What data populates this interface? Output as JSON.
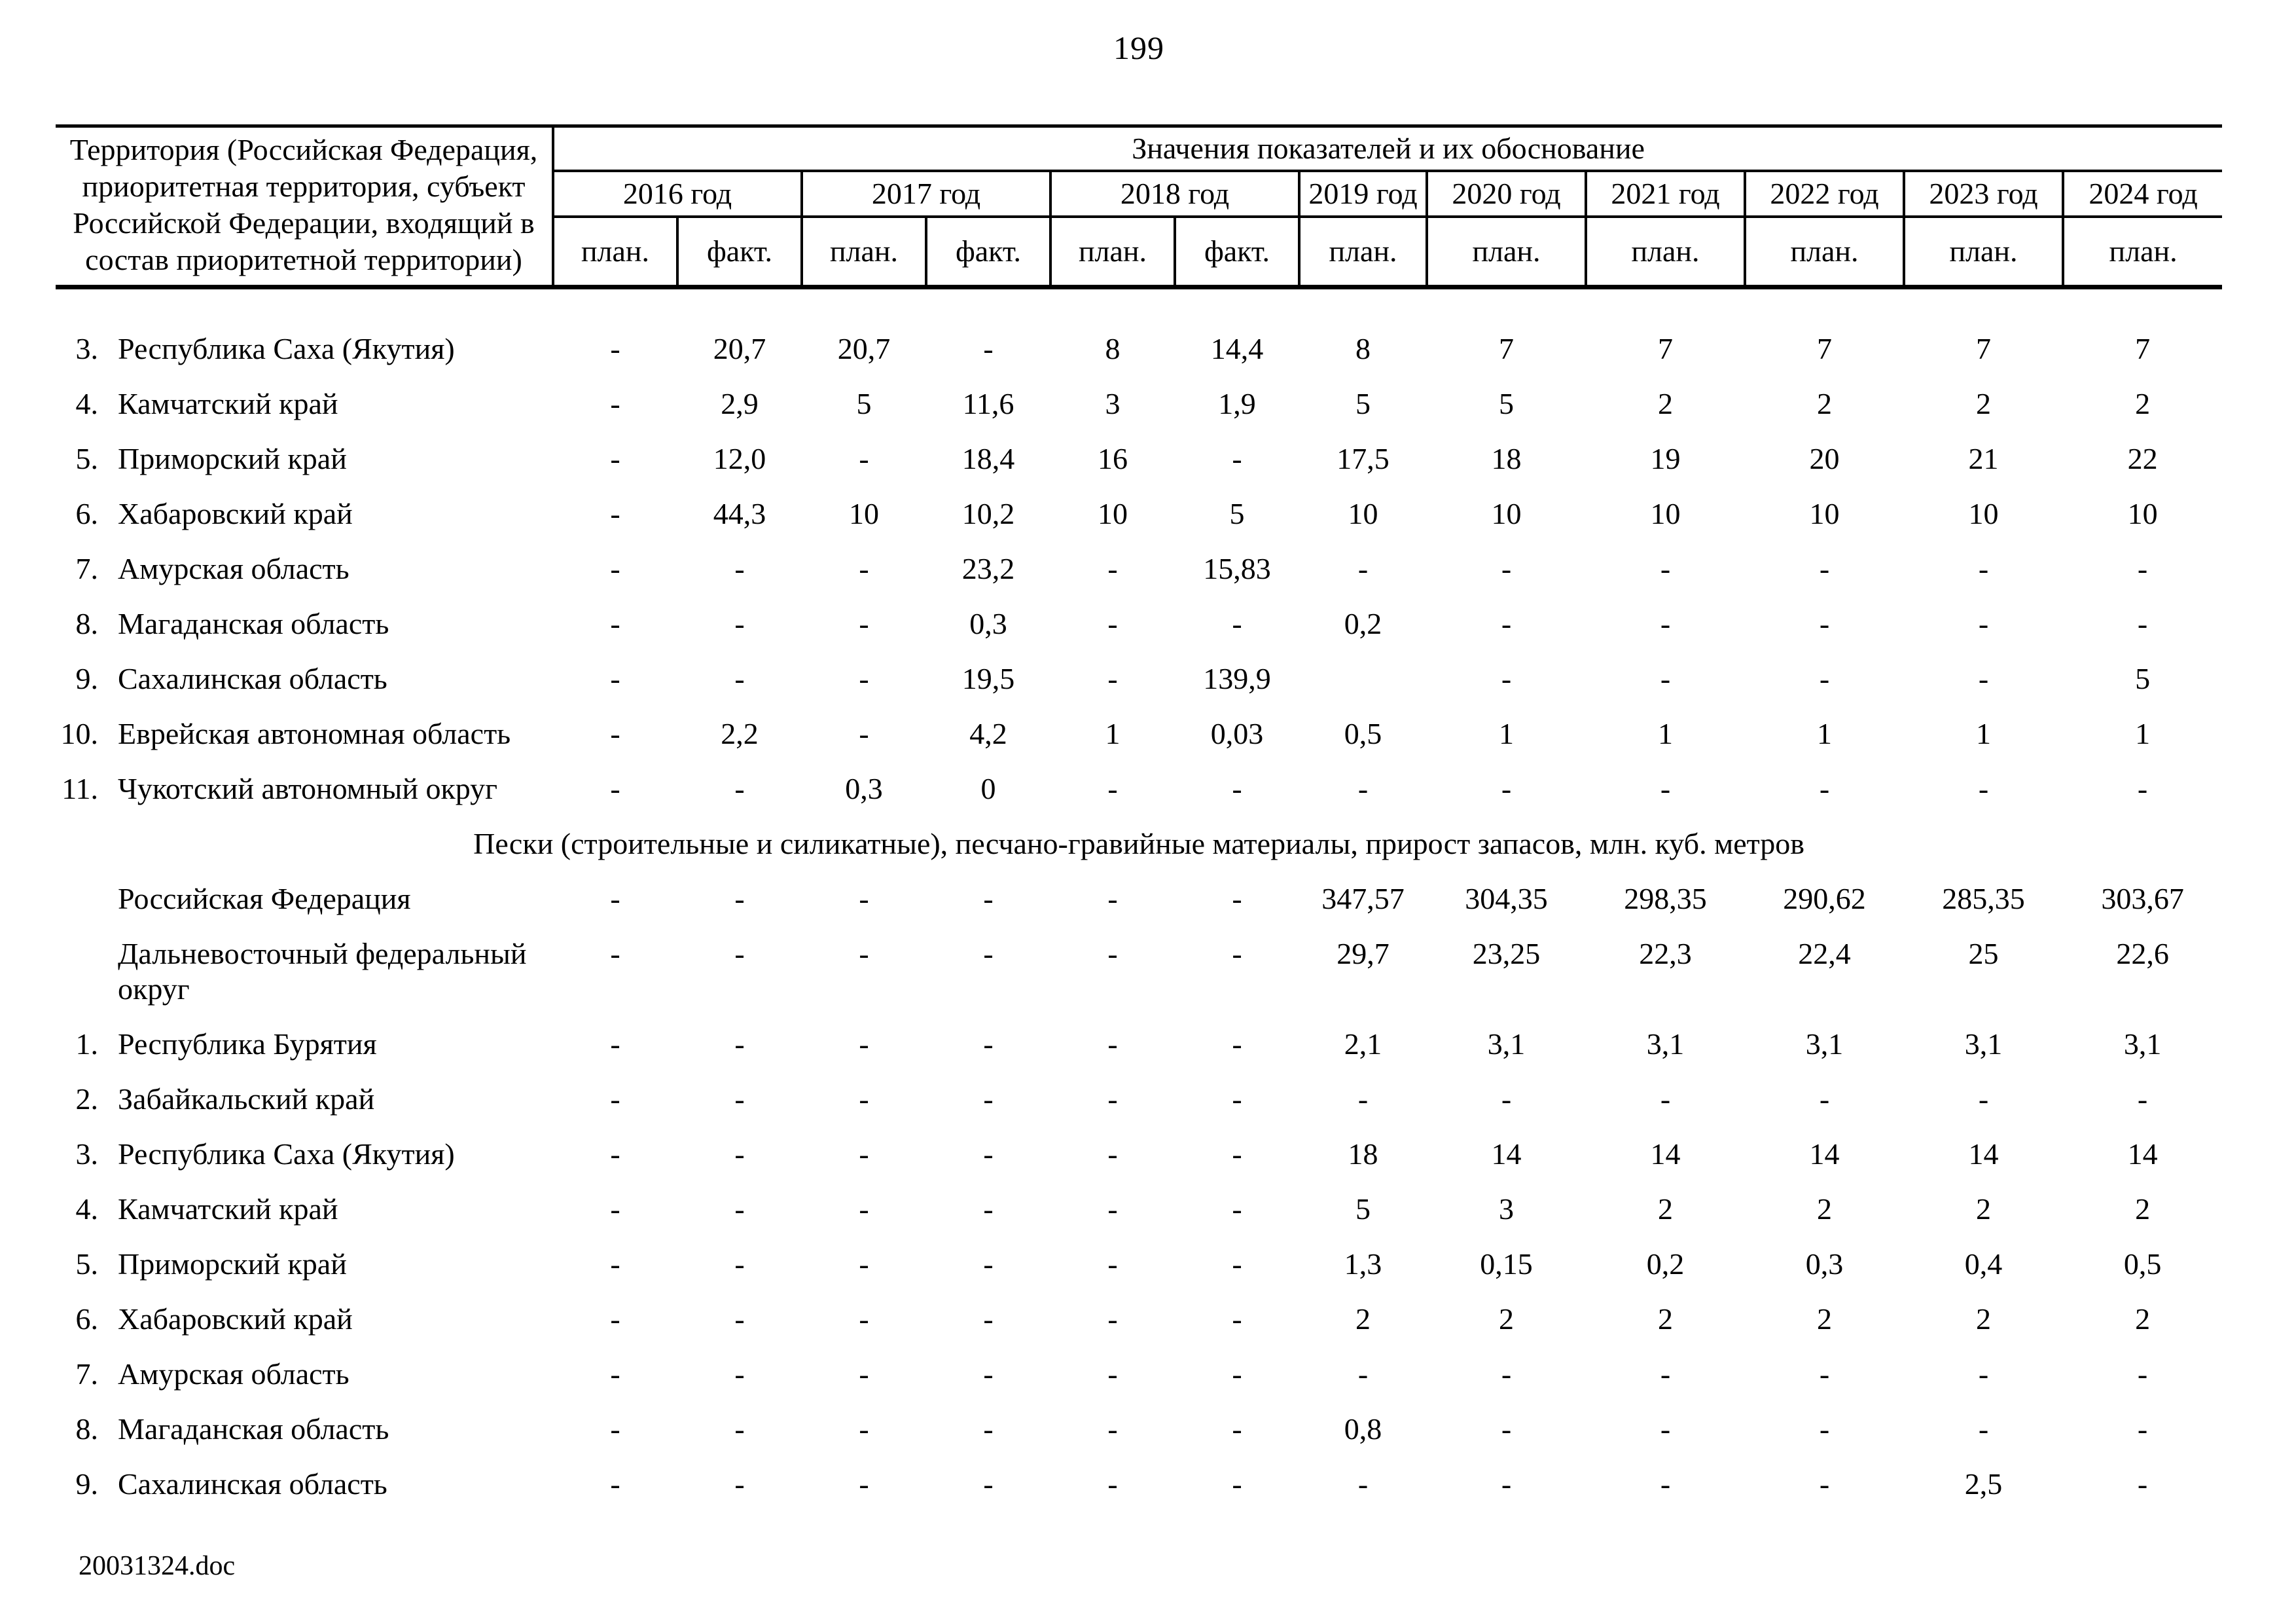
{
  "page": {
    "number": "199",
    "footer_filename": "20031324.doc"
  },
  "table": {
    "territory_header": "Территория (Российская Федерация, приоритетная территория, субъект Российской Федерации, входящий в состав приоритетной территории)",
    "values_header": "Значения показателей и их обоснование",
    "sub_labels": [
      "план.",
      "факт."
    ],
    "year_groups": [
      {
        "label": "2016 год"
      },
      {
        "label": "2017 год"
      },
      {
        "label": "2018 год"
      },
      {
        "label": "2019 год"
      },
      {
        "label": "2020 год"
      },
      {
        "label": "2021 год"
      },
      {
        "label": "2022 год"
      },
      {
        "label": "2023 год"
      },
      {
        "label": "2024 год"
      }
    ],
    "sections": [
      {
        "header": null,
        "rows": [
          {
            "num": "3.",
            "name": "Республика Саха (Якутия)",
            "values": [
              "-",
              "20,7",
              "20,7",
              "-",
              "8",
              "14,4",
              "8",
              "7",
              "7",
              "7",
              "7",
              "7"
            ]
          },
          {
            "num": "4.",
            "name": "Камчатский край",
            "values": [
              "-",
              "2,9",
              "5",
              "11,6",
              "3",
              "1,9",
              "5",
              "5",
              "2",
              "2",
              "2",
              "2"
            ]
          },
          {
            "num": "5.",
            "name": "Приморский край",
            "values": [
              "-",
              "12,0",
              "-",
              "18,4",
              "16",
              "-",
              "17,5",
              "18",
              "19",
              "20",
              "21",
              "22"
            ]
          },
          {
            "num": "6.",
            "name": "Хабаровский край",
            "values": [
              "-",
              "44,3",
              "10",
              "10,2",
              "10",
              "5",
              "10",
              "10",
              "10",
              "10",
              "10",
              "10"
            ]
          },
          {
            "num": "7.",
            "name": "Амурская область",
            "values": [
              "-",
              "-",
              "-",
              "23,2",
              "-",
              "15,83",
              "-",
              "-",
              "-",
              "-",
              "-",
              "-"
            ]
          },
          {
            "num": "8.",
            "name": "Магаданская область",
            "values": [
              "-",
              "-",
              "-",
              "0,3",
              "-",
              "-",
              "0,2",
              "-",
              "-",
              "-",
              "-",
              "-"
            ]
          },
          {
            "num": "9.",
            "name": "Сахалинская область",
            "values": [
              "-",
              "-",
              "-",
              "19,5",
              "-",
              "139,9",
              "",
              "-",
              "-",
              "-",
              "-",
              "5"
            ]
          },
          {
            "num": "10.",
            "name": "Еврейская автономная область",
            "values": [
              "-",
              "2,2",
              "-",
              "4,2",
              "1",
              "0,03",
              "0,5",
              "1",
              "1",
              "1",
              "1",
              "1"
            ]
          },
          {
            "num": "11.",
            "name": "Чукотский автономный округ",
            "values": [
              "-",
              "-",
              "0,3",
              "0",
              "-",
              "-",
              "-",
              "-",
              "-",
              "-",
              "-",
              "-"
            ]
          }
        ]
      },
      {
        "header": "Пески (строительные и силикатные), песчано-гравийные материалы, прирост запасов, млн. куб. метров",
        "rows": [
          {
            "num": "",
            "name": "Российская Федерация",
            "values": [
              "-",
              "-",
              "-",
              "-",
              "-",
              "-",
              "347,57",
              "304,35",
              "298,35",
              "290,62",
              "285,35",
              "303,67"
            ]
          },
          {
            "num": "",
            "name": "Дальневосточный федеральный округ",
            "values": [
              "-",
              "-",
              "-",
              "-",
              "-",
              "-",
              "29,7",
              "23,25",
              "22,3",
              "22,4",
              "25",
              "22,6"
            ]
          },
          {
            "num": "1.",
            "name": "Республика Бурятия",
            "values": [
              "-",
              "-",
              "-",
              "-",
              "-",
              "-",
              "2,1",
              "3,1",
              "3,1",
              "3,1",
              "3,1",
              "3,1"
            ]
          },
          {
            "num": "2.",
            "name": "Забайкальский край",
            "values": [
              "-",
              "-",
              "-",
              "-",
              "-",
              "-",
              "-",
              "-",
              "-",
              "-",
              "-",
              "-"
            ]
          },
          {
            "num": "3.",
            "name": "Республика Саха (Якутия)",
            "values": [
              "-",
              "-",
              "-",
              "-",
              "-",
              "-",
              "18",
              "14",
              "14",
              "14",
              "14",
              "14"
            ]
          },
          {
            "num": "4.",
            "name": "Камчатский край",
            "values": [
              "-",
              "-",
              "-",
              "-",
              "-",
              "-",
              "5",
              "3",
              "2",
              "2",
              "2",
              "2"
            ]
          },
          {
            "num": "5.",
            "name": "Приморский край",
            "values": [
              "-",
              "-",
              "-",
              "-",
              "-",
              "-",
              "1,3",
              "0,15",
              "0,2",
              "0,3",
              "0,4",
              "0,5"
            ]
          },
          {
            "num": "6.",
            "name": "Хабаровский край",
            "values": [
              "-",
              "-",
              "-",
              "-",
              "-",
              "-",
              "2",
              "2",
              "2",
              "2",
              "2",
              "2"
            ]
          },
          {
            "num": "7.",
            "name": "Амурская область",
            "values": [
              "-",
              "-",
              "-",
              "-",
              "-",
              "-",
              "-",
              "-",
              "-",
              "-",
              "-",
              "-"
            ]
          },
          {
            "num": "8.",
            "name": "Магаданская область",
            "values": [
              "-",
              "-",
              "-",
              "-",
              "-",
              "-",
              "0,8",
              "-",
              "-",
              "-",
              "-",
              "-"
            ]
          },
          {
            "num": "9.",
            "name": "Сахалинская область",
            "values": [
              "-",
              "-",
              "-",
              "-",
              "-",
              "-",
              "-",
              "-",
              "-",
              "-",
              "2,5",
              "-"
            ]
          }
        ]
      }
    ]
  }
}
